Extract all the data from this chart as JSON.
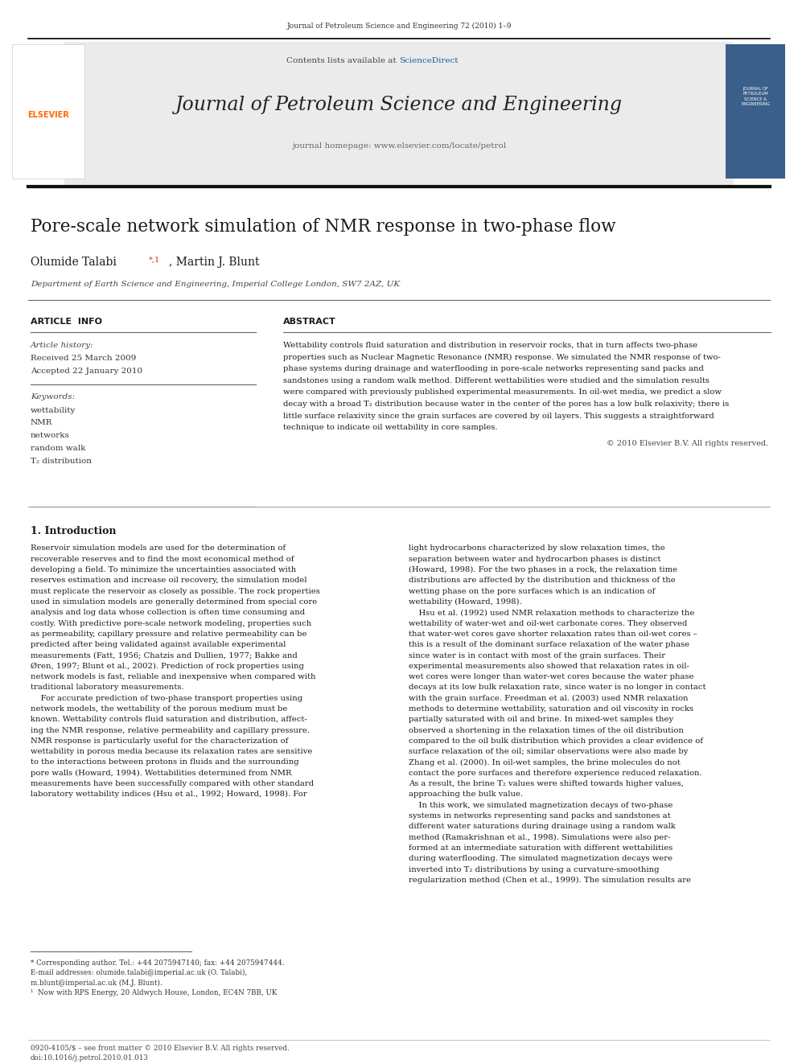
{
  "page_width": 9.92,
  "page_height": 13.23,
  "bg_color": "#ffffff",
  "top_journal_ref": "Journal of Petroleum Science and Engineering 72 (2010) 1–9",
  "header_bg": "#e8e8e8",
  "contents_text": "Contents lists available at ",
  "sciencedirect_text": "ScienceDirect",
  "sciencedirect_color": "#1a6496",
  "journal_title": "Journal of Petroleum Science and Engineering",
  "journal_homepage": "journal homepage: www.elsevier.com/locate/petrol",
  "elsevier_color": "#FF6600",
  "paper_title": "Pore-scale network simulation of NMR response in two-phase flow",
  "authors": "Olumide Talabi",
  "authors_sup": "*,1",
  "authors2": ", Martin J. Blunt",
  "affiliation": "Department of Earth Science and Engineering, Imperial College London, SW7 2AZ, UK",
  "article_info_title": "ARTICLE  INFO",
  "abstract_title": "ABSTRACT",
  "article_history_label": "Article history:",
  "received_text": "Received 25 March 2009",
  "accepted_text": "Accepted 22 January 2010",
  "keywords_label": "Keywords:",
  "keywords": [
    "wettability",
    "NMR",
    "networks",
    "random walk",
    "T₂ distribution"
  ],
  "abstract_lines": [
    "Wettability controls fluid saturation and distribution in reservoir rocks, that in turn affects two-phase",
    "properties such as Nuclear Magnetic Resonance (NMR) response. We simulated the NMR response of two-",
    "phase systems during drainage and waterflooding in pore-scale networks representing sand packs and",
    "sandstones using a random walk method. Different wettabilities were studied and the simulation results",
    "were compared with previously published experimental measurements. In oil-wet media, we predict a slow",
    "decay with a broad T₂ distribution because water in the center of the pores has a low bulk relaxivity; there is",
    "little surface relaxivity since the grain surfaces are covered by oil layers. This suggests a straightforward",
    "technique to indicate oil wettability in core samples."
  ],
  "copyright_text": "© 2010 Elsevier B.V. All rights reserved.",
  "section1_title": "1. Introduction",
  "intro_col1_lines": [
    "Reservoir simulation models are used for the determination of",
    "recoverable reserves and to find the most economical method of",
    "developing a field. To minimize the uncertainties associated with",
    "reserves estimation and increase oil recovery, the simulation model",
    "must replicate the reservoir as closely as possible. The rock properties",
    "used in simulation models are generally determined from special core",
    "analysis and log data whose collection is often time consuming and",
    "costly. With predictive pore-scale network modeling, properties such",
    "as permeability, capillary pressure and relative permeability can be",
    "predicted after being validated against available experimental",
    "measurements (Fatt, 1956; Chatzis and Dullien, 1977; Bakke and",
    "Øren, 1997; Blunt et al., 2002). Prediction of rock properties using",
    "network models is fast, reliable and inexpensive when compared with",
    "traditional laboratory measurements.",
    "    For accurate prediction of two-phase transport properties using",
    "network models, the wettability of the porous medium must be",
    "known. Wettability controls fluid saturation and distribution, affect-",
    "ing the NMR response, relative permeability and capillary pressure.",
    "NMR response is particularly useful for the characterization of",
    "wettability in porous media because its relaxation rates are sensitive",
    "to the interactions between protons in fluids and the surrounding",
    "pore walls (Howard, 1994). Wettabilities determined from NMR",
    "measurements have been successfully compared with other standard",
    "laboratory wettability indices (Hsu et al., 1992; Howard, 1998). For"
  ],
  "intro_col2_lines": [
    "light hydrocarbons characterized by slow relaxation times, the",
    "separation between water and hydrocarbon phases is distinct",
    "(Howard, 1998). For the two phases in a rock, the relaxation time",
    "distributions are affected by the distribution and thickness of the",
    "wetting phase on the pore surfaces which is an indication of",
    "wettability (Howard, 1998).",
    "    Hsu et al. (1992) used NMR relaxation methods to characterize the",
    "wettability of water-wet and oil-wet carbonate cores. They observed",
    "that water-wet cores gave shorter relaxation rates than oil-wet cores –",
    "this is a result of the dominant surface relaxation of the water phase",
    "since water is in contact with most of the grain surfaces. Their",
    "experimental measurements also showed that relaxation rates in oil-",
    "wet cores were longer than water-wet cores because the water phase",
    "decays at its low bulk relaxation rate, since water is no longer in contact",
    "with the grain surface. Freedman et al. (2003) used NMR relaxation",
    "methods to determine wettability, saturation and oil viscosity in rocks",
    "partially saturated with oil and brine. In mixed-wet samples they",
    "observed a shortening in the relaxation times of the oil distribution",
    "compared to the oil bulk distribution which provides a clear evidence of",
    "surface relaxation of the oil; similar observations were also made by",
    "Zhang et al. (2000). In oil-wet samples, the brine molecules do not",
    "contact the pore surfaces and therefore experience reduced relaxation.",
    "As a result, the brine T₂ values were shifted towards higher values,",
    "approaching the bulk value.",
    "    In this work, we simulated magnetization decays of two-phase",
    "systems in networks representing sand packs and sandstones at",
    "different water saturations during drainage using a random walk",
    "method (Ramakrishnan et al., 1998). Simulations were also per-",
    "formed at an intermediate saturation with different wettabilities",
    "during waterflooding. The simulated magnetization decays were",
    "inverted into T₂ distributions by using a curvature-smoothing",
    "regularization method (Chen et al., 1999). The simulation results are"
  ],
  "footnote_lines": [
    "* Corresponding author. Tel.: +44 2075947140; fax: +44 2075947444.",
    "E-mail addresses: olumide.talabi@imperial.ac.uk (O. Talabi),",
    "m.blunt@imperial.ac.uk (M.J. Blunt).",
    "¹  Now with RPS Energy, 20 Aldwych House, London, EC4N 7BB, UK"
  ],
  "bottom_text": "0920-4105/$ – see front matter © 2010 Elsevier B.V. All rights reserved.",
  "doi_text": "doi:10.1016/j.petrol.2010.01.013"
}
